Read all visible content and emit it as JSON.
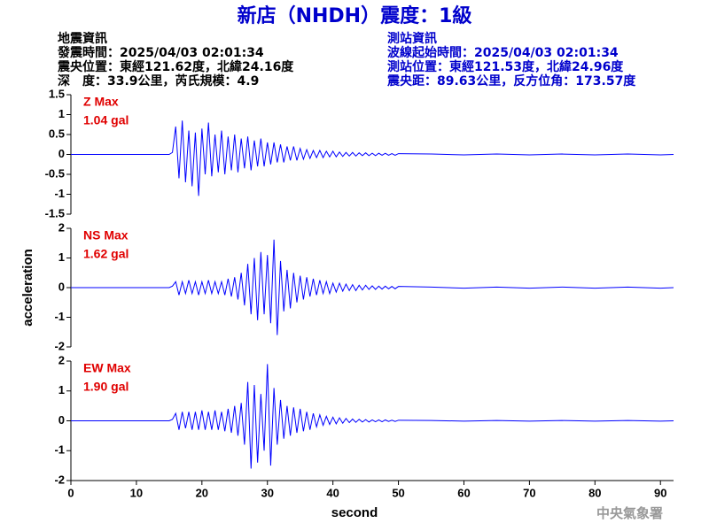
{
  "header": {
    "title": "新店（NHDH）震度：1級",
    "event_info": [
      "地震資訊",
      "發震時間：2025/04/03 02:01:34",
      "震央位置：東經121.62度，北緯24.16度",
      "深　度：33.9公里，芮氏規模：4.9"
    ],
    "station_info": [
      "測站資訊",
      "波線起始時間：2025/04/03 02:01:34",
      "測站位置：東經121.53度，北緯24.96度",
      "震央距：89.63公里，反方位角：173.57度"
    ]
  },
  "footer": "中央氣象署",
  "chart_data": [
    {
      "type": "line",
      "max_label": "Z Max",
      "max_value": "1.04 gal",
      "color": "#0000ff",
      "xlim": [
        0,
        92
      ],
      "ylim": [
        -1.5,
        1.5
      ],
      "yticks": [
        1.5,
        1,
        0.5,
        0,
        -0.5,
        -1,
        -1.5
      ],
      "x": [
        0,
        5,
        10,
        15,
        15.5,
        16,
        16.5,
        17,
        17.5,
        18,
        18.5,
        19,
        19.5,
        20,
        20.5,
        21,
        21.5,
        22,
        22.5,
        23,
        23.5,
        24,
        24.5,
        25,
        25.5,
        26,
        26.5,
        27,
        27.5,
        28,
        28.5,
        29,
        29.5,
        30,
        30.5,
        31,
        31.5,
        32,
        32.5,
        33,
        33.5,
        34,
        34.5,
        35,
        35.5,
        36,
        36.5,
        37,
        37.5,
        38,
        38.5,
        39,
        39.5,
        40,
        40.5,
        41,
        41.5,
        42,
        42.5,
        43,
        43.5,
        44,
        44.5,
        45,
        45.5,
        46,
        46.5,
        47,
        47.5,
        48,
        48.5,
        49,
        49.5,
        50,
        55,
        60,
        65,
        70,
        75,
        80,
        85,
        90,
        92
      ],
      "values": [
        0,
        0,
        0,
        0,
        0.05,
        0.7,
        -0.6,
        0.85,
        -0.7,
        0.6,
        -0.8,
        0.55,
        -1.04,
        0.65,
        -0.5,
        0.8,
        -0.55,
        0.5,
        -0.45,
        0.6,
        -0.5,
        0.45,
        -0.4,
        0.5,
        -0.45,
        0.4,
        -0.35,
        0.45,
        -0.4,
        0.35,
        -0.3,
        0.4,
        -0.3,
        0.3,
        -0.25,
        0.3,
        -0.2,
        0.25,
        -0.2,
        0.2,
        -0.15,
        0.2,
        -0.15,
        0.15,
        -0.12,
        0.12,
        -0.1,
        0.1,
        -0.08,
        0.1,
        -0.08,
        0.08,
        -0.06,
        0.08,
        -0.06,
        0.06,
        -0.05,
        0.05,
        -0.04,
        0.05,
        -0.04,
        0.04,
        -0.03,
        0.04,
        -0.03,
        0.03,
        -0.03,
        0.03,
        -0.02,
        0.03,
        -0.02,
        0.02,
        -0.02,
        0.02,
        0.01,
        -0.01,
        0.01,
        -0.01,
        0.01,
        -0.01,
        0.01,
        -0.01,
        0
      ]
    },
    {
      "type": "line",
      "max_label": "NS Max",
      "max_value": "1.62 gal",
      "color": "#0000ff",
      "xlim": [
        0,
        92
      ],
      "ylim": [
        -2,
        2
      ],
      "yticks": [
        2,
        1,
        0,
        -1,
        -2
      ],
      "ylabel": "acceleration",
      "x": [
        0,
        5,
        10,
        15,
        15.5,
        16,
        16.5,
        17,
        17.5,
        18,
        18.5,
        19,
        19.5,
        20,
        20.5,
        21,
        21.5,
        22,
        22.5,
        23,
        23.5,
        24,
        24.5,
        25,
        25.5,
        26,
        26.5,
        27,
        27.5,
        28,
        28.5,
        29,
        29.5,
        30,
        30.5,
        31,
        31.5,
        32,
        32.5,
        33,
        33.5,
        34,
        34.5,
        35,
        35.5,
        36,
        36.5,
        37,
        37.5,
        38,
        38.5,
        39,
        39.5,
        40,
        40.5,
        41,
        41.5,
        42,
        42.5,
        43,
        43.5,
        44,
        44.5,
        45,
        45.5,
        46,
        46.5,
        47,
        47.5,
        48,
        48.5,
        49,
        49.5,
        50,
        55,
        60,
        65,
        70,
        75,
        80,
        85,
        90,
        92
      ],
      "values": [
        0,
        0,
        0,
        0,
        0.05,
        0.2,
        -0.25,
        0.2,
        -0.2,
        0.25,
        -0.2,
        0.2,
        -0.25,
        0.2,
        -0.2,
        0.25,
        -0.2,
        0.2,
        -0.2,
        0.2,
        -0.25,
        0.3,
        -0.3,
        0.35,
        -0.4,
        0.5,
        -0.6,
        0.8,
        -0.9,
        1.0,
        -1.1,
        1.2,
        -0.9,
        1.1,
        -1.2,
        1.62,
        -1.6,
        0.9,
        -0.8,
        0.6,
        -0.7,
        0.5,
        -0.5,
        0.4,
        -0.4,
        0.35,
        -0.3,
        0.3,
        -0.25,
        0.25,
        -0.2,
        0.2,
        -0.2,
        0.15,
        -0.15,
        0.15,
        -0.12,
        0.12,
        -0.1,
        0.1,
        -0.1,
        0.08,
        -0.08,
        0.08,
        -0.06,
        0.06,
        -0.06,
        0.05,
        -0.05,
        0.05,
        -0.04,
        0.04,
        -0.04,
        0.04,
        0.02,
        -0.02,
        0.02,
        -0.02,
        0.02,
        -0.02,
        0.02,
        -0.02,
        0
      ]
    },
    {
      "type": "line",
      "max_label": "EW Max",
      "max_value": "1.90 gal",
      "color": "#0000ff",
      "xlim": [
        0,
        92
      ],
      "ylim": [
        -2,
        2
      ],
      "yticks": [
        2,
        1,
        0,
        -1,
        -2
      ],
      "xticks": [
        0,
        10,
        20,
        30,
        40,
        50,
        60,
        70,
        80,
        90
      ],
      "xlabel": "second",
      "x": [
        0,
        5,
        10,
        15,
        15.5,
        16,
        16.5,
        17,
        17.5,
        18,
        18.5,
        19,
        19.5,
        20,
        20.5,
        21,
        21.5,
        22,
        22.5,
        23,
        23.5,
        24,
        24.5,
        25,
        25.5,
        26,
        26.5,
        27,
        27.5,
        28,
        28.5,
        29,
        29.5,
        30,
        30.5,
        31,
        31.5,
        32,
        32.5,
        33,
        33.5,
        34,
        34.5,
        35,
        35.5,
        36,
        36.5,
        37,
        37.5,
        38,
        38.5,
        39,
        39.5,
        40,
        40.5,
        41,
        41.5,
        42,
        42.5,
        43,
        43.5,
        44,
        44.5,
        45,
        45.5,
        46,
        46.5,
        47,
        47.5,
        48,
        48.5,
        49,
        49.5,
        50,
        55,
        60,
        65,
        70,
        75,
        80,
        85,
        90,
        92
      ],
      "values": [
        0,
        0,
        0,
        0,
        0.05,
        0.25,
        -0.3,
        0.3,
        -0.25,
        0.3,
        -0.3,
        0.3,
        -0.3,
        0.35,
        -0.3,
        0.3,
        -0.3,
        0.35,
        -0.3,
        0.3,
        -0.35,
        0.4,
        -0.4,
        0.5,
        -0.5,
        0.6,
        -0.8,
        1.3,
        -1.6,
        1.2,
        -1.4,
        0.9,
        -1.0,
        1.9,
        -1.5,
        1.1,
        -0.8,
        0.7,
        -0.6,
        0.5,
        -0.5,
        0.45,
        -0.4,
        0.4,
        -0.35,
        0.3,
        -0.3,
        0.25,
        -0.2,
        0.2,
        -0.15,
        0.15,
        -0.12,
        0.12,
        -0.1,
        0.1,
        -0.08,
        0.08,
        -0.06,
        0.06,
        -0.05,
        0.05,
        -0.04,
        0.04,
        -0.04,
        0.03,
        -0.03,
        0.03,
        -0.03,
        0.03,
        -0.02,
        0.02,
        -0.02,
        0.02,
        0.01,
        -0.01,
        0.01,
        -0.01,
        0.01,
        -0.01,
        0.01,
        -0.01,
        0
      ]
    }
  ]
}
